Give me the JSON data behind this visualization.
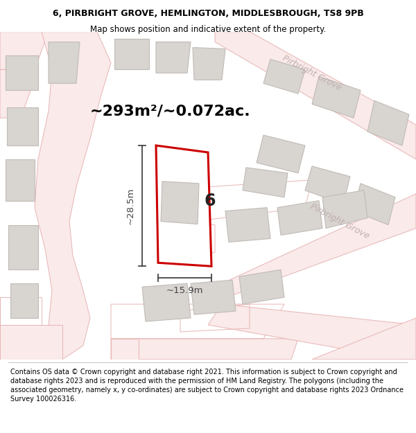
{
  "title": "6, PIRBRIGHT GROVE, HEMLINGTON, MIDDLESBROUGH, TS8 9PB",
  "subtitle": "Map shows position and indicative extent of the property.",
  "area_text": "~293m²/~0.072ac.",
  "property_number": "6",
  "dim_width": "~15.9m",
  "dim_height": "~28.5m",
  "street_label": "Pirbright Grove",
  "footer_text": "Contains OS data © Crown copyright and database right 2021. This information is subject to Crown copyright and database rights 2023 and is reproduced with the permission of HM Land Registry. The polygons (including the associated geometry, namely x, y co-ordinates) are subject to Crown copyright and database rights 2023 Ordnance Survey 100026316.",
  "bg_color": "#ffffff",
  "map_bg": "#ffffff",
  "road_stroke": "#e8b4b4",
  "road_fill": "#faeaea",
  "building_fill": "#d8d4d0",
  "building_outline": "#c0bbb6",
  "plot_color": "#cc0000",
  "plot_fill": "#ffffff",
  "dim_line_color": "#444444",
  "street_label_color": "#c0b0b0",
  "title_color": "#000000",
  "footer_color": "#000000",
  "area_text_color": "#000000",
  "title_fontsize": 9.0,
  "subtitle_fontsize": 8.5,
  "area_fontsize": 16,
  "footer_fontsize": 7.0
}
